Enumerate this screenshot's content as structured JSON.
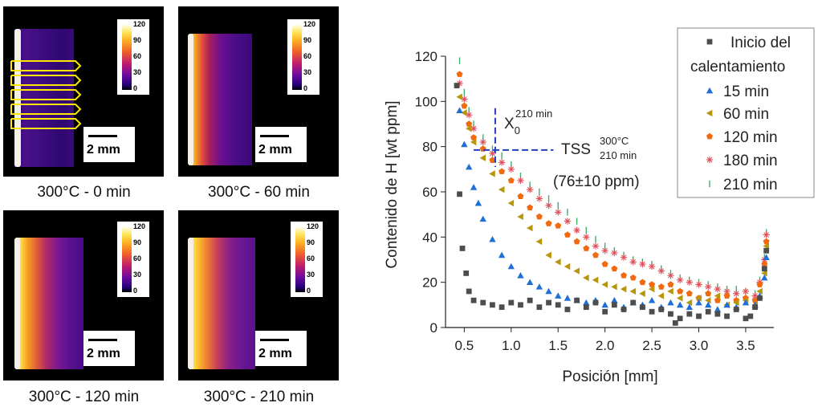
{
  "panels": [
    {
      "caption": "300°C - 0 min",
      "scale_label": "2 mm",
      "cbar_ticks": [
        "120",
        "90",
        "60",
        "30",
        "0"
      ]
    },
    {
      "caption": "300°C - 60 min",
      "scale_label": "2 mm",
      "cbar_ticks": [
        "120",
        "90",
        "60",
        "30",
        "0"
      ]
    },
    {
      "caption": "300°C - 120 min",
      "scale_label": "2 mm",
      "cbar_ticks": [
        "120",
        "90",
        "60",
        "30",
        "0"
      ]
    },
    {
      "caption": "300°C - 210 min",
      "scale_label": "2 mm",
      "cbar_ticks": [
        "120",
        "90",
        "60",
        "30",
        "0"
      ]
    }
  ],
  "colors": {
    "inicio": "#4d4d4d",
    "m15": "#1f6fd6",
    "m60": "#b8960c",
    "m120": "#f26a0f",
    "m180": "#e0505a",
    "m210": "#3fae6b",
    "annotation": "#1f3fbf"
  },
  "chart_data": {
    "type": "scatter",
    "xlabel": "Posición [mm]",
    "ylabel": "Contenido de H [wt ppm]",
    "xlim": [
      0.3,
      3.8
    ],
    "ylim": [
      0,
      120
    ],
    "xticks": [
      "0.5",
      "1.0",
      "1.5",
      "2.0",
      "2.5",
      "3.0",
      "3.5"
    ],
    "yticks": [
      "0",
      "20",
      "40",
      "60",
      "80",
      "100",
      "120"
    ],
    "legend_position": "top-right",
    "legend": {
      "inicio_line1": "Inicio del",
      "inicio_line2": "calentamiento",
      "m15": "15 min",
      "m60": "60 min",
      "m120": "120 min",
      "m180": "180 min",
      "m210": "210 min"
    },
    "annotations": {
      "x0_main": "X",
      "x0_sub": "0",
      "x0_sup": "210 min",
      "tss_main": "TSS",
      "tss_sup": "300°C",
      "tss_sub": "210 min",
      "tss_value": "(76±10 ppm)"
    },
    "series": [
      {
        "key": "inicio",
        "marker": "square",
        "x": [
          0.42,
          0.45,
          0.48,
          0.52,
          0.55,
          0.6,
          0.7,
          0.8,
          0.9,
          1.0,
          1.1,
          1.2,
          1.3,
          1.4,
          1.5,
          1.6,
          1.7,
          1.8,
          1.9,
          2.0,
          2.1,
          2.2,
          2.3,
          2.4,
          2.5,
          2.6,
          2.7,
          2.75,
          2.8,
          2.9,
          3.0,
          3.1,
          3.2,
          3.3,
          3.4,
          3.5,
          3.55,
          3.6,
          3.65,
          3.7,
          3.72
        ],
        "y": [
          107,
          59,
          35,
          24,
          16,
          12,
          11,
          10,
          9,
          11,
          10,
          12,
          9,
          11,
          10,
          8,
          12,
          9,
          11,
          7,
          10,
          8,
          11,
          9,
          7,
          8,
          6,
          2,
          4,
          6,
          5,
          7,
          6,
          5,
          8,
          4,
          5,
          9,
          13,
          26,
          34
        ]
      },
      {
        "key": "m15",
        "marker": "triangle-up",
        "x": [
          0.45,
          0.5,
          0.55,
          0.6,
          0.65,
          0.7,
          0.8,
          0.9,
          1.0,
          1.1,
          1.2,
          1.3,
          1.4,
          1.5,
          1.6,
          1.7,
          1.8,
          1.9,
          2.0,
          2.1,
          2.2,
          2.3,
          2.4,
          2.5,
          2.6,
          2.7,
          2.8,
          2.9,
          3.0,
          3.1,
          3.2,
          3.3,
          3.4,
          3.5,
          3.6,
          3.65,
          3.7,
          3.72
        ],
        "y": [
          96,
          81,
          71,
          62,
          55,
          48,
          39,
          32,
          27,
          23,
          20,
          18,
          16,
          14,
          13,
          12,
          11,
          12,
          10,
          12,
          9,
          11,
          10,
          12,
          9,
          11,
          10,
          9,
          11,
          10,
          8,
          10,
          9,
          11,
          10,
          14,
          22,
          31
        ]
      },
      {
        "key": "m60",
        "marker": "triangle-left",
        "x": [
          0.45,
          0.5,
          0.55,
          0.6,
          0.7,
          0.8,
          0.9,
          1.0,
          1.1,
          1.2,
          1.3,
          1.4,
          1.5,
          1.6,
          1.7,
          1.8,
          1.9,
          2.0,
          2.1,
          2.2,
          2.3,
          2.4,
          2.5,
          2.6,
          2.7,
          2.8,
          2.9,
          3.0,
          3.1,
          3.2,
          3.3,
          3.4,
          3.5,
          3.6,
          3.65,
          3.7,
          3.72
        ],
        "y": [
          102,
          95,
          88,
          82,
          75,
          68,
          61,
          55,
          49,
          44,
          38,
          32,
          29,
          27,
          25,
          22,
          21,
          19,
          18,
          17,
          16,
          15,
          17,
          14,
          16,
          13,
          11,
          13,
          12,
          14,
          10,
          11,
          12,
          10,
          16,
          24,
          36
        ]
      },
      {
        "key": "m120",
        "marker": "pentagon",
        "x": [
          0.45,
          0.5,
          0.55,
          0.6,
          0.7,
          0.8,
          0.9,
          1.0,
          1.1,
          1.2,
          1.3,
          1.4,
          1.5,
          1.6,
          1.7,
          1.8,
          1.9,
          2.0,
          2.1,
          2.2,
          2.3,
          2.4,
          2.5,
          2.6,
          2.7,
          2.8,
          2.9,
          3.0,
          3.1,
          3.2,
          3.3,
          3.4,
          3.5,
          3.6,
          3.65,
          3.7,
          3.72
        ],
        "y": [
          112,
          98,
          90,
          84,
          79,
          74,
          69,
          65,
          58,
          53,
          49,
          46,
          45,
          41,
          38,
          35,
          32,
          28,
          26,
          23,
          22,
          20,
          19,
          18,
          19,
          16,
          15,
          13,
          15,
          12,
          14,
          12,
          13,
          12,
          19,
          28,
          38
        ]
      },
      {
        "key": "m180",
        "marker": "asterisk",
        "x": [
          0.45,
          0.5,
          0.55,
          0.6,
          0.7,
          0.8,
          0.9,
          1.0,
          1.1,
          1.2,
          1.3,
          1.4,
          1.5,
          1.6,
          1.7,
          1.8,
          1.9,
          2.0,
          2.1,
          2.2,
          2.3,
          2.4,
          2.5,
          2.6,
          2.7,
          2.8,
          2.9,
          3.0,
          3.1,
          3.2,
          3.3,
          3.4,
          3.5,
          3.6,
          3.65,
          3.7,
          3.72
        ],
        "y": [
          108,
          101,
          94,
          88,
          82,
          77,
          73,
          70,
          65,
          61,
          57,
          54,
          51,
          47,
          43,
          40,
          36,
          34,
          33,
          31,
          29,
          28,
          27,
          25,
          23,
          21,
          20,
          19,
          18,
          17,
          16,
          15,
          16,
          14,
          20,
          30,
          41
        ]
      },
      {
        "key": "m210",
        "marker": "vline",
        "x": [
          0.45,
          0.5,
          0.55,
          0.6,
          0.7,
          0.8,
          0.9,
          1.0,
          1.1,
          1.2,
          1.3,
          1.4,
          1.5,
          1.6,
          1.7,
          1.8,
          1.9,
          2.0,
          2.1,
          2.2,
          2.3,
          2.4,
          2.5,
          2.6,
          2.7,
          2.8,
          2.9,
          3.0,
          3.1,
          3.2,
          3.3,
          3.4,
          3.5,
          3.6,
          3.65,
          3.7,
          3.72
        ],
        "y": [
          118,
          104,
          96,
          90,
          84,
          79,
          76,
          72,
          67,
          63,
          60,
          57,
          54,
          51,
          47,
          43,
          39,
          36,
          34,
          32,
          30,
          29,
          28,
          26,
          24,
          22,
          21,
          20,
          19,
          18,
          17,
          17,
          16,
          15,
          21,
          31,
          42
        ]
      }
    ]
  }
}
